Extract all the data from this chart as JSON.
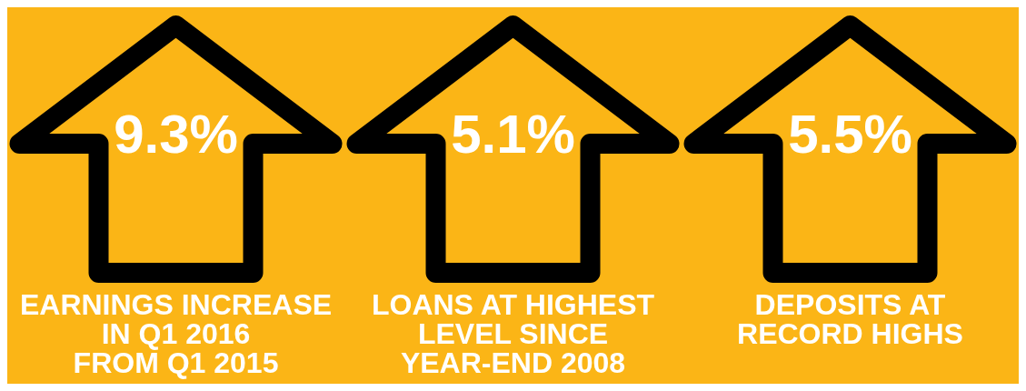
{
  "chart_data": {
    "type": "other",
    "categories": [
      "EARNINGS INCREASE\nIN Q1 2016\nFROM Q1 2015",
      "LOANS AT HIGHEST\nLEVEL SINCE\nYEAR-END 2008",
      "DEPOSITS AT\nRECORD HIGHS"
    ],
    "values": [
      9.3,
      5.1,
      5.5
    ],
    "value_labels": [
      "9.3%",
      "5.1%",
      "5.5%"
    ]
  }
}
